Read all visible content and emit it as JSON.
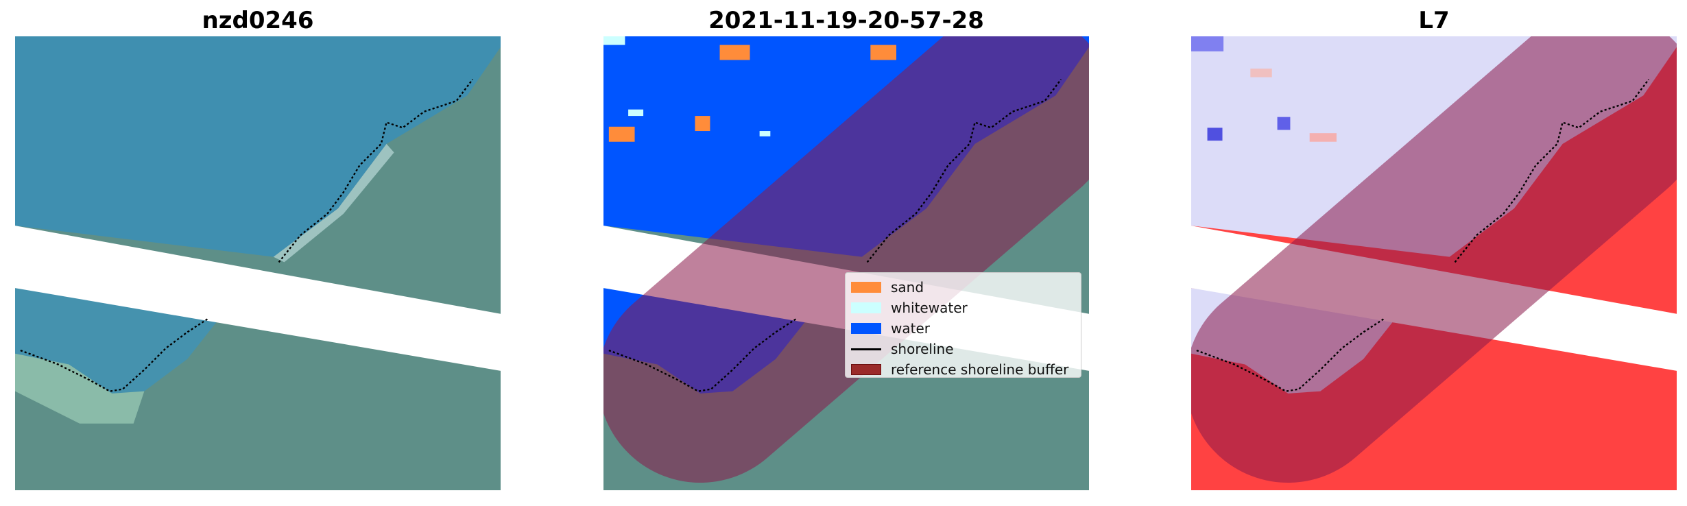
{
  "panels": [
    {
      "title": "nzd0246",
      "kind": "rgb-image"
    },
    {
      "title": "2021-11-19-20-57-28",
      "kind": "classification"
    },
    {
      "title": "L7",
      "kind": "index-image"
    }
  ],
  "legend": {
    "items": [
      {
        "label": "sand",
        "color": "#ff8c3a",
        "type": "patch"
      },
      {
        "label": "whitewater",
        "color": "#ccffff",
        "type": "patch"
      },
      {
        "label": "water",
        "color": "#0055ff",
        "type": "patch"
      },
      {
        "label": "shoreline",
        "color": "#000000",
        "type": "line"
      },
      {
        "label": "reference shoreline buffer",
        "color": "#9b2a2a",
        "type": "patch"
      }
    ]
  },
  "colors": {
    "sea_rgb": "#3f8fb0",
    "land_rgb": "#5e8f88",
    "buffer_overlay": "#8b1a4a",
    "index_low": "#dcdcf8",
    "index_high": "#ff4242"
  }
}
